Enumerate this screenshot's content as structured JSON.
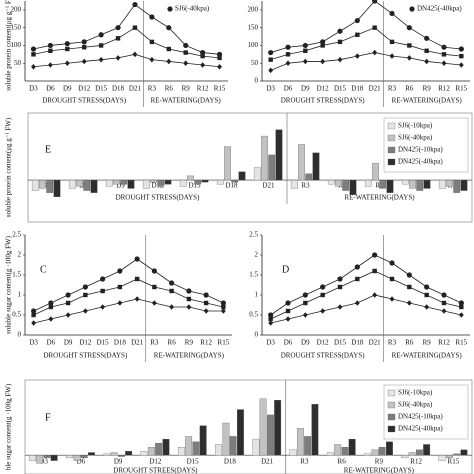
{
  "chart_data": [
    {
      "type": "line",
      "y_label": "soluble protein content(μg g⁻¹ FW)",
      "categories": [
        "D3",
        "D6",
        "D9",
        "D12",
        "D15",
        "D18",
        "D21",
        "R3",
        "R6",
        "R9",
        "R12",
        "R15"
      ],
      "x_groups": [
        "DROUGHT STRESS(DAYS)",
        "RE-WATERING(DAYS)"
      ],
      "ylim": [
        0,
        225
      ],
      "yticks": [
        50,
        100,
        150,
        200
      ],
      "grid": false,
      "legend": "upper right",
      "series": [
        {
          "name": "SJ6(-40kpa)",
          "color": "#222",
          "values": [
            90,
            100,
            105,
            110,
            130,
            150,
            215,
            180,
            150,
            100,
            80,
            75
          ]
        },
        {
          "color": "#222",
          "values": [
            75,
            85,
            90,
            95,
            100,
            120,
            150,
            110,
            90,
            80,
            70,
            65
          ]
        },
        {
          "color": "#222",
          "values": [
            40,
            45,
            50,
            55,
            60,
            65,
            75,
            60,
            55,
            50,
            45,
            40
          ]
        }
      ]
    },
    {
      "type": "line",
      "categories": [
        "D3",
        "D6",
        "D9",
        "D12",
        "D15",
        "D18",
        "D21",
        "R3",
        "R6",
        "R9",
        "R12",
        "R15"
      ],
      "x_groups": [
        "DROUGHT STRESS(DAYS)",
        "RE-WATERING(DAYS)"
      ],
      "ylim": [
        0,
        225
      ],
      "yticks": [
        0,
        50,
        100,
        150,
        200
      ],
      "grid": false,
      "legend": "upper right",
      "series": [
        {
          "name": "DN425(-40kpa)",
          "color": "#222",
          "values": [
            80,
            95,
            100,
            110,
            140,
            170,
            225,
            190,
            150,
            120,
            95,
            90
          ]
        },
        {
          "color": "#222",
          "values": [
            60,
            75,
            85,
            100,
            110,
            130,
            150,
            110,
            100,
            85,
            75,
            70
          ]
        },
        {
          "color": "#222",
          "values": [
            30,
            50,
            55,
            55,
            60,
            70,
            80,
            70,
            65,
            55,
            50,
            45
          ]
        }
      ]
    },
    {
      "type": "bar",
      "panel": "E",
      "y_label": "soluble protein content(μg g⁻¹ FW)",
      "categories": [
        "D3",
        "D6",
        "D9",
        "D12",
        "D15",
        "D18",
        "D21",
        "R3",
        "R6",
        "R9",
        "R12",
        "R15"
      ],
      "x_groups": [
        "DROUGHT STRESS(DAYS)",
        "RE-WATERING(DAYS)"
      ],
      "ylim": [
        -200,
        320
      ],
      "legend": "upper right",
      "series": [
        {
          "name": "SJ6(-10kpa)",
          "color": "#e4e4e4",
          "values": [
            -50,
            -40,
            -30,
            -40,
            -30,
            -20,
            60,
            -40,
            -20,
            -30,
            -20,
            -40
          ]
        },
        {
          "name": "SJ6(-40kpa)",
          "color": "#c2c2c2",
          "values": [
            -40,
            -30,
            -20,
            -10,
            20,
            160,
            210,
            170,
            -30,
            80,
            -40,
            -30
          ]
        },
        {
          "name": "DN425(-10kpa)",
          "color": "#7d7d7d",
          "values": [
            -60,
            -50,
            -20,
            -30,
            -20,
            -10,
            120,
            30,
            -50,
            -40,
            -50,
            -60
          ]
        },
        {
          "name": "DN425(-40kpa)",
          "color": "#2e2e2e",
          "values": [
            -80,
            -60,
            -40,
            -20,
            -10,
            40,
            240,
            130,
            -70,
            -60,
            -40,
            -50
          ]
        }
      ]
    },
    {
      "type": "line",
      "panel": "C",
      "y_label": "soluble sugar content(g ·100g FW)",
      "categories": [
        "D3",
        "D6",
        "D9",
        "D12",
        "D15",
        "D18",
        "D21",
        "R3",
        "R6",
        "R9",
        "R12",
        "R15"
      ],
      "x_groups": [
        "DROUGHT STRESS(DAYS)",
        "RE-WATERING(DAYS)"
      ],
      "ylim": [
        0,
        2.5
      ],
      "yticks": [
        0,
        0.5,
        1,
        1.5,
        2,
        2.5
      ],
      "grid": false,
      "series": [
        {
          "color": "#222",
          "values": [
            0.6,
            0.8,
            1.0,
            1.2,
            1.4,
            1.6,
            1.9,
            1.6,
            1.3,
            1.1,
            1.0,
            0.8
          ]
        },
        {
          "color": "#222",
          "values": [
            0.5,
            0.7,
            0.8,
            1.0,
            1.1,
            1.2,
            1.4,
            1.2,
            1.1,
            0.9,
            0.8,
            0.7
          ]
        },
        {
          "color": "#222",
          "values": [
            0.3,
            0.4,
            0.5,
            0.6,
            0.7,
            0.8,
            0.9,
            0.8,
            0.7,
            0.7,
            0.6,
            0.6
          ]
        }
      ]
    },
    {
      "type": "line",
      "panel": "D",
      "categories": [
        "D3",
        "D6",
        "D9",
        "D12",
        "D15",
        "D18",
        "D21",
        "R3",
        "R6",
        "R9",
        "R12",
        "R15"
      ],
      "x_groups": [
        "DROUGHT STRESS(DAYS)",
        "RE-WATERING(DAYS)"
      ],
      "ylim": [
        0,
        2.5
      ],
      "yticks": [
        0,
        0.5,
        1,
        1.5,
        2,
        2.5
      ],
      "grid": false,
      "series": [
        {
          "color": "#222",
          "values": [
            0.5,
            0.8,
            1.0,
            1.2,
            1.4,
            1.7,
            2.0,
            1.8,
            1.5,
            1.2,
            1.0,
            0.8
          ]
        },
        {
          "color": "#222",
          "values": [
            0.4,
            0.6,
            0.8,
            1.0,
            1.2,
            1.4,
            1.6,
            1.4,
            1.2,
            1.0,
            0.8,
            0.7
          ]
        },
        {
          "color": "#222",
          "values": [
            0.3,
            0.4,
            0.5,
            0.6,
            0.7,
            0.8,
            1.0,
            0.9,
            0.8,
            0.7,
            0.6,
            0.5
          ]
        }
      ]
    },
    {
      "type": "bar",
      "panel": "F",
      "y_label": "ble sugar content(g ·100g FW)",
      "categories": [
        "D3",
        "D6",
        "D9",
        "D12",
        "D15",
        "D18",
        "D21",
        "R3",
        "R6",
        "R9",
        "R12",
        "R15"
      ],
      "x_groups": [
        "DROUGHT STREES(DAYS)",
        "RE-WATERING(DAYS)"
      ],
      "ylim": [
        -0.7,
        2.8
      ],
      "legend": "upper right",
      "series": [
        {
          "name": "SJ6(-10kpa)",
          "color": "#e4e4e4",
          "values": [
            -0.2,
            -0.1,
            0.05,
            0.15,
            0.3,
            0.4,
            0.6,
            0.2,
            0.1,
            0.05,
            -0.1,
            -0.2
          ]
        },
        {
          "name": "SJ6(-40kpa)",
          "color": "#c2c2c2",
          "values": [
            -0.3,
            -0.2,
            0.1,
            0.3,
            0.7,
            1.2,
            2.1,
            1.0,
            0.4,
            0.2,
            0.1,
            -0.1
          ]
        },
        {
          "name": "DN425(-10kpa)",
          "color": "#7d7d7d",
          "values": [
            -0.1,
            -0.1,
            -0.05,
            0.45,
            0.5,
            0.7,
            1.5,
            0.7,
            0.3,
            0.3,
            0.2,
            0.05
          ]
        },
        {
          "name": "DN425(-40kpa)",
          "color": "#2e2e2e",
          "values": [
            -0.2,
            0.1,
            0.15,
            0.6,
            1.1,
            1.7,
            2.05,
            1.9,
            0.6,
            0.5,
            0.4,
            0.2
          ]
        }
      ]
    }
  ]
}
